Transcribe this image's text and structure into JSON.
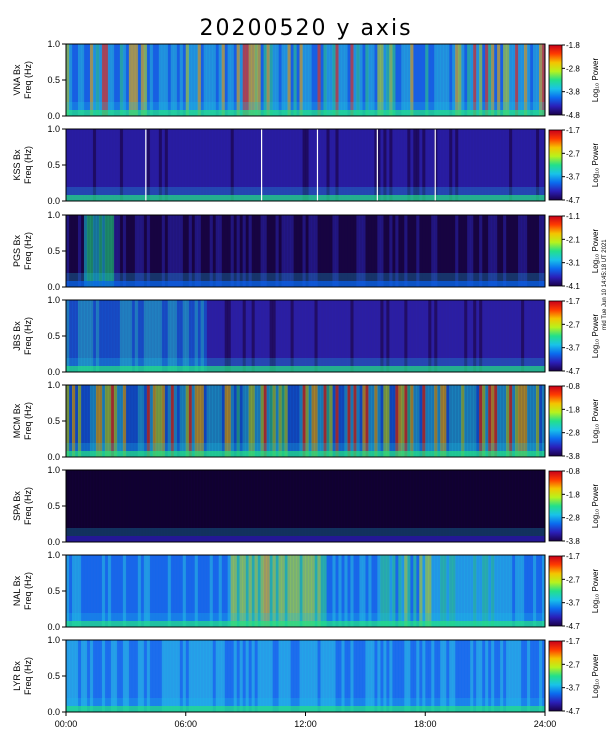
{
  "title": "20200520  y  axis",
  "side_note": "mid Tue Jun 10 14:45:18 UT 2021",
  "colors": {
    "jet": [
      "#1a004a",
      "#2b1fb8",
      "#0a6cf0",
      "#19c3e8",
      "#23e08a",
      "#b8f21c",
      "#f5c400",
      "#ff3b00",
      "#c8001a"
    ]
  },
  "chart_data": [
    {
      "type": "heatmap",
      "station": "VNA",
      "ylabel": [
        "VNA  Bx",
        "Freq (Hz)"
      ],
      "yticks": [
        "1.0",
        "0.5",
        "0.0"
      ],
      "ylim": [
        0,
        1
      ],
      "colorbar": {
        "label": "Log₁₀ Power",
        "ticks": [
          "-1.8",
          "-2.8",
          "-3.8",
          "-4.8"
        ],
        "range": [
          -4.8,
          -1.8
        ]
      },
      "background": "#2b4fd0",
      "activity": "banded",
      "seed": 11
    },
    {
      "type": "heatmap",
      "station": "KSS",
      "ylabel": [
        "KSS  Bx",
        "Freq (Hz)"
      ],
      "yticks": [
        "1.0",
        "0.5",
        "0.0"
      ],
      "ylim": [
        0,
        1
      ],
      "colorbar": {
        "label": "Log₁₀ Power",
        "ticks": [
          "-1.7",
          "-2.7",
          "-3.7",
          "-4.7"
        ],
        "range": [
          -4.7,
          -1.7
        ]
      },
      "background": "#241a80",
      "activity": "quiet",
      "gaps_hours": [
        4.0,
        9.8,
        12.6,
        15.6,
        18.5
      ],
      "seed": 23
    },
    {
      "type": "heatmap",
      "station": "PGS",
      "ylabel": [
        "PGS  Bx",
        "Freq (Hz)"
      ],
      "yticks": [
        "1.0",
        "0.5",
        "0.0"
      ],
      "ylim": [
        0,
        1
      ],
      "colorbar": {
        "label": "Log₁₀ Power",
        "ticks": [
          "-1.1",
          "-2.1",
          "-3.1",
          "-4.1"
        ],
        "range": [
          -4.1,
          -1.1
        ]
      },
      "background": "#150a35",
      "activity": "dark_early_burst",
      "seed": 37
    },
    {
      "type": "heatmap",
      "station": "JBS",
      "ylabel": [
        "JBS  Bx",
        "Freq (Hz)"
      ],
      "yticks": [
        "1.0",
        "0.5",
        "0.0"
      ],
      "ylim": [
        0,
        1
      ],
      "colorbar": {
        "label": "Log₁₀ Power",
        "ticks": [
          "-1.7",
          "-2.7",
          "-3.7",
          "-4.7"
        ],
        "range": [
          -4.7,
          -1.7
        ]
      },
      "background": "#2a1d85",
      "activity": "active_then_quiet",
      "seed": 41
    },
    {
      "type": "heatmap",
      "station": "MCM",
      "ylabel": [
        "MCM  Bx",
        "Freq (Hz)"
      ],
      "yticks": [
        "1.0",
        "0.5",
        "0.0"
      ],
      "ylim": [
        0,
        1
      ],
      "colorbar": {
        "label": "Log₁₀ Power",
        "ticks": [
          "-0.8",
          "-1.8",
          "-2.8",
          "-3.8"
        ],
        "range": [
          -3.8,
          -0.8
        ]
      },
      "background": "#1a1570",
      "activity": "banded_strong",
      "seed": 53
    },
    {
      "type": "heatmap",
      "station": "SPA",
      "ylabel": [
        "SPA  Bx",
        "Freq (Hz)"
      ],
      "yticks": [
        "1.0",
        "0.5",
        "0.0"
      ],
      "ylim": [
        0,
        1
      ],
      "colorbar": {
        "label": "Log₁₀ Power",
        "ticks": [
          "-0.8",
          "-1.8",
          "-2.8",
          "-3.8"
        ],
        "range": [
          -3.8,
          -0.8
        ]
      },
      "background": "#050310",
      "activity": "very_dark",
      "seed": 67
    },
    {
      "type": "heatmap",
      "station": "NAL",
      "ylabel": [
        "NAL  Bx",
        "Freq (Hz)"
      ],
      "yticks": [
        "1.0",
        "0.5",
        "0.0"
      ],
      "ylim": [
        0,
        1
      ],
      "colorbar": {
        "label": "Log₁₀ Power",
        "ticks": [
          "-1.7",
          "-2.7",
          "-3.7",
          "-4.7"
        ],
        "range": [
          -4.7,
          -1.7
        ]
      },
      "background": "#2d5fe0",
      "activity": "mid_burst",
      "seed": 71
    },
    {
      "type": "heatmap",
      "station": "LYR",
      "ylabel": [
        "LYR  Bx",
        "Freq (Hz)"
      ],
      "yticks": [
        "1.0",
        "0.5",
        "0.0"
      ],
      "ylim": [
        0,
        1
      ],
      "colorbar": {
        "label": "Log₁₀ Power",
        "ticks": [
          "-1.7",
          "-2.7",
          "-3.7",
          "-4.7"
        ],
        "range": [
          -4.7,
          -1.7
        ]
      },
      "background": "#3570e8",
      "activity": "uniform",
      "seed": 83
    }
  ],
  "x_axis": {
    "ticks": [
      "00:00",
      "06:00",
      "12:00",
      "18:00",
      "24:00"
    ],
    "range_hours": [
      0,
      24
    ]
  }
}
